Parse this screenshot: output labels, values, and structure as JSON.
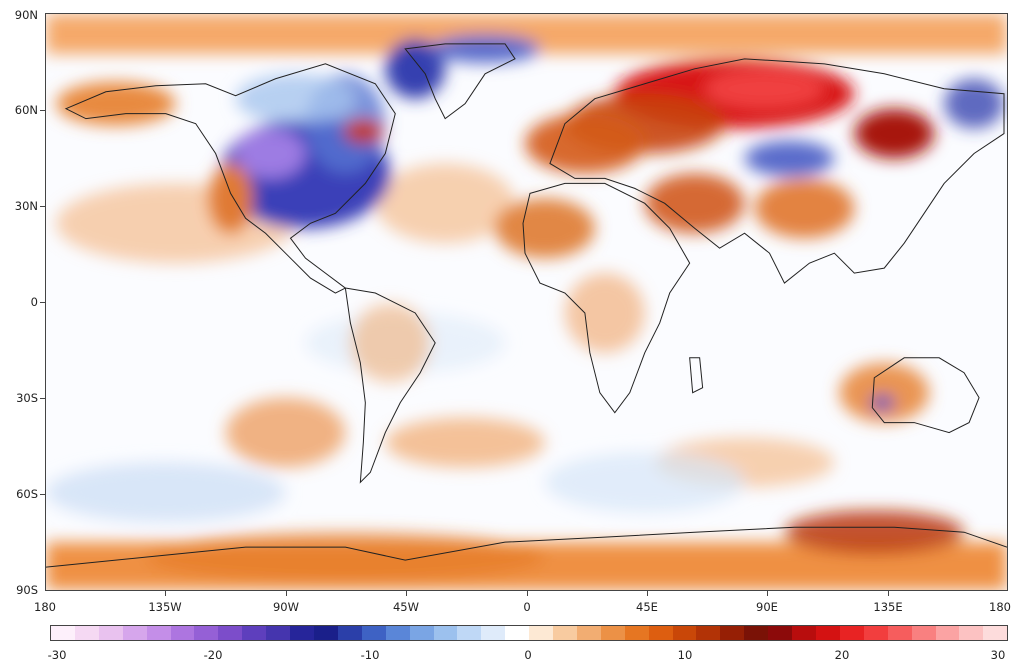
{
  "map": {
    "lat_labels": [
      "90N",
      "60N",
      "30N",
      "0",
      "30S",
      "60S",
      "90S"
    ],
    "lon_labels": [
      "180",
      "135W",
      "90W",
      "45W",
      "0",
      "45E",
      "90E",
      "135E",
      "180"
    ],
    "colorbar": {
      "min": -30,
      "max": 30,
      "tick_labels": [
        "-30",
        "-20",
        "-10",
        "0",
        "10",
        "20",
        "30"
      ],
      "colors": [
        "#fdf0fb",
        "#f5d9f3",
        "#e9c2ef",
        "#d6a6ec",
        "#c48ee8",
        "#ad75e0",
        "#9560d6",
        "#7c4dca",
        "#5e3fbd",
        "#4535ae",
        "#26259a",
        "#1a1f8a",
        "#2b3fa9",
        "#3e62c4",
        "#5a86d8",
        "#7aa5e4",
        "#9cc1ee",
        "#bfd8f6",
        "#dfebfa",
        "#ffffff",
        "#fde9d4",
        "#f8cba0",
        "#f2ad72",
        "#ec9146",
        "#e67622",
        "#dd5e10",
        "#c94708",
        "#b23306",
        "#961f05",
        "#7a1206",
        "#8c0a0a",
        "#b80d0d",
        "#d41212",
        "#e82323",
        "#f23e3e",
        "#f65d5d",
        "#f98080",
        "#fba3a3",
        "#fcc2c2",
        "#fddcdc"
      ]
    }
  }
}
